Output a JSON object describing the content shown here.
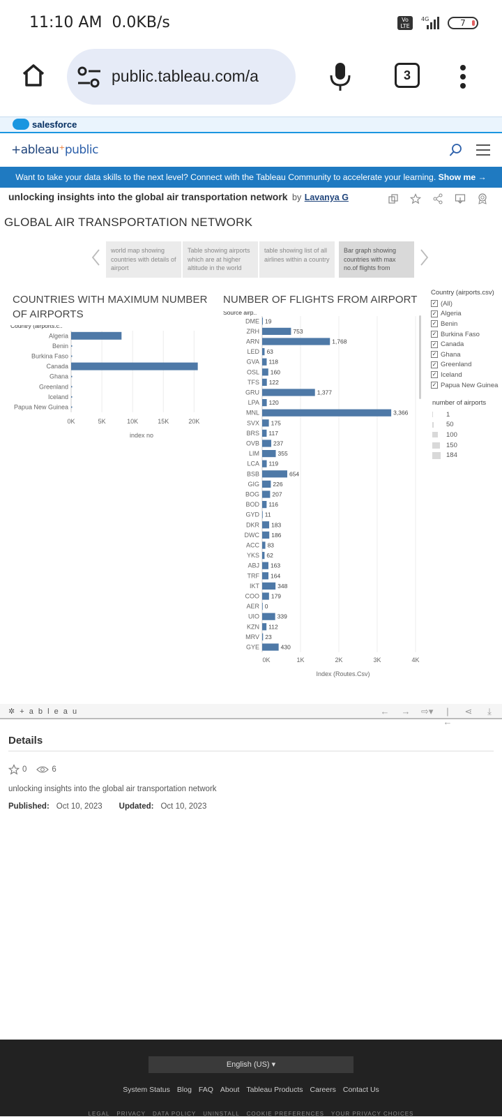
{
  "status_bar": {
    "time": "11:10 AM",
    "speed": "0.0KB/s",
    "volte": "Vo LTE",
    "network": "4G",
    "battery": "7"
  },
  "browser": {
    "url": "public.tableau.com/a",
    "tab_count": "3"
  },
  "salesforce": {
    "label": "salesforce"
  },
  "site": {
    "logo_left": "+ableau",
    "logo_right": "public"
  },
  "promo": {
    "text": "Want to take your data skills to the next level? Connect with the Tableau Community to accelerate your learning.",
    "cta": "Show me →"
  },
  "viz": {
    "title": "unlocking insights into the global air transportation network",
    "by": "by",
    "author": "Lavanya G"
  },
  "dashboard": {
    "title": "GLOBAL AIR TRANSPORTATION NETWORK",
    "story_points": [
      "world map showing countries with details of airport",
      "Table showing airports which are at higher altitude in the world",
      "table showing list of all airlines within a country",
      "Bar graph showing countries with max no.of flights from"
    ],
    "active_story": 3
  },
  "chart_data": [
    {
      "type": "bar",
      "orientation": "horizontal",
      "title": "COUNTRIES WITH MAXIMUM NUMBER OF AIRPORTS",
      "row_header": "Country (airports.c..",
      "xlabel": "index no",
      "categories": [
        "Algeria",
        "Benin",
        "Burkina Faso",
        "Canada",
        "Ghana",
        "Greenland",
        "Iceland",
        "Papua New Guinea"
      ],
      "values": [
        8200,
        120,
        90,
        20600,
        80,
        120,
        130,
        170
      ],
      "xticks": [
        "0K",
        "5K",
        "10K",
        "15K",
        "20K"
      ],
      "xlim": [
        0,
        22000
      ],
      "grid": true,
      "color": "#4e79a7"
    },
    {
      "type": "bar",
      "orientation": "horizontal",
      "title": "NUMBER OF FLIGHTS FROM AIRPORT",
      "row_header": "Source airp..",
      "xlabel": "Index (Routes.Csv)",
      "categories": [
        "DME",
        "ZRH",
        "ARN",
        "LED",
        "GVA",
        "OSL",
        "TFS",
        "GRU",
        "LPA",
        "MNL",
        "SVX",
        "BRS",
        "OVB",
        "LIM",
        "LCA",
        "BSB",
        "GIG",
        "BOG",
        "BOD",
        "GYD",
        "DKR",
        "DWC",
        "ACC",
        "YKS",
        "ABJ",
        "TRF",
        "IKT",
        "COO",
        "AER",
        "UIO",
        "KZN",
        "MRV",
        "GYE"
      ],
      "values": [
        19,
        753,
        1768,
        63,
        118,
        160,
        122,
        1377,
        120,
        3366,
        175,
        117,
        237,
        355,
        119,
        654,
        226,
        207,
        116,
        11,
        183,
        186,
        83,
        62,
        163,
        164,
        348,
        179,
        0,
        339,
        112,
        23,
        430
      ],
      "labels": [
        "19",
        "753",
        "1,768",
        "63",
        "118",
        "160",
        "122",
        "1,377",
        "120",
        "3,366",
        "175",
        "117",
        "237",
        "355",
        "119",
        "654",
        "226",
        "207",
        "116",
        "11",
        "183",
        "186",
        "83",
        "62",
        "163",
        "164",
        "348",
        "179",
        "0",
        "339",
        "112",
        "23",
        "430"
      ],
      "xticks": [
        "0K",
        "1K",
        "2K",
        "3K",
        "4K"
      ],
      "xlim": [
        0,
        4000
      ],
      "grid": true,
      "color": "#4e79a7"
    }
  ],
  "legend_country": {
    "title": "Country (airports.csv)",
    "items": [
      "(All)",
      "Algeria",
      "Benin",
      "Burkina Faso",
      "Canada",
      "Ghana",
      "Greenland",
      "Iceland",
      "Papua New Guinea"
    ]
  },
  "legend_size": {
    "title": "number of airports",
    "items": [
      "1",
      "50",
      "100",
      "150",
      "184"
    ]
  },
  "toolbar": {
    "brand": "+ a b l e a u"
  },
  "details": {
    "heading": "Details",
    "favorites": "0",
    "views": "6",
    "description": "unlocking insights into the global air transportation network",
    "published_label": "Published:",
    "published": "Oct 10, 2023",
    "updated_label": "Updated:",
    "updated": "Oct 10, 2023"
  },
  "footer": {
    "language": "English (US)",
    "links": [
      "System Status",
      "Blog",
      "FAQ",
      "About",
      "Tableau Products",
      "Careers",
      "Contact Us"
    ],
    "legal": [
      "LEGAL",
      "PRIVACY",
      "DATA POLICY",
      "UNINSTALL",
      "COOKIE PREFERENCES",
      "YOUR PRIVACY CHOICES"
    ]
  }
}
